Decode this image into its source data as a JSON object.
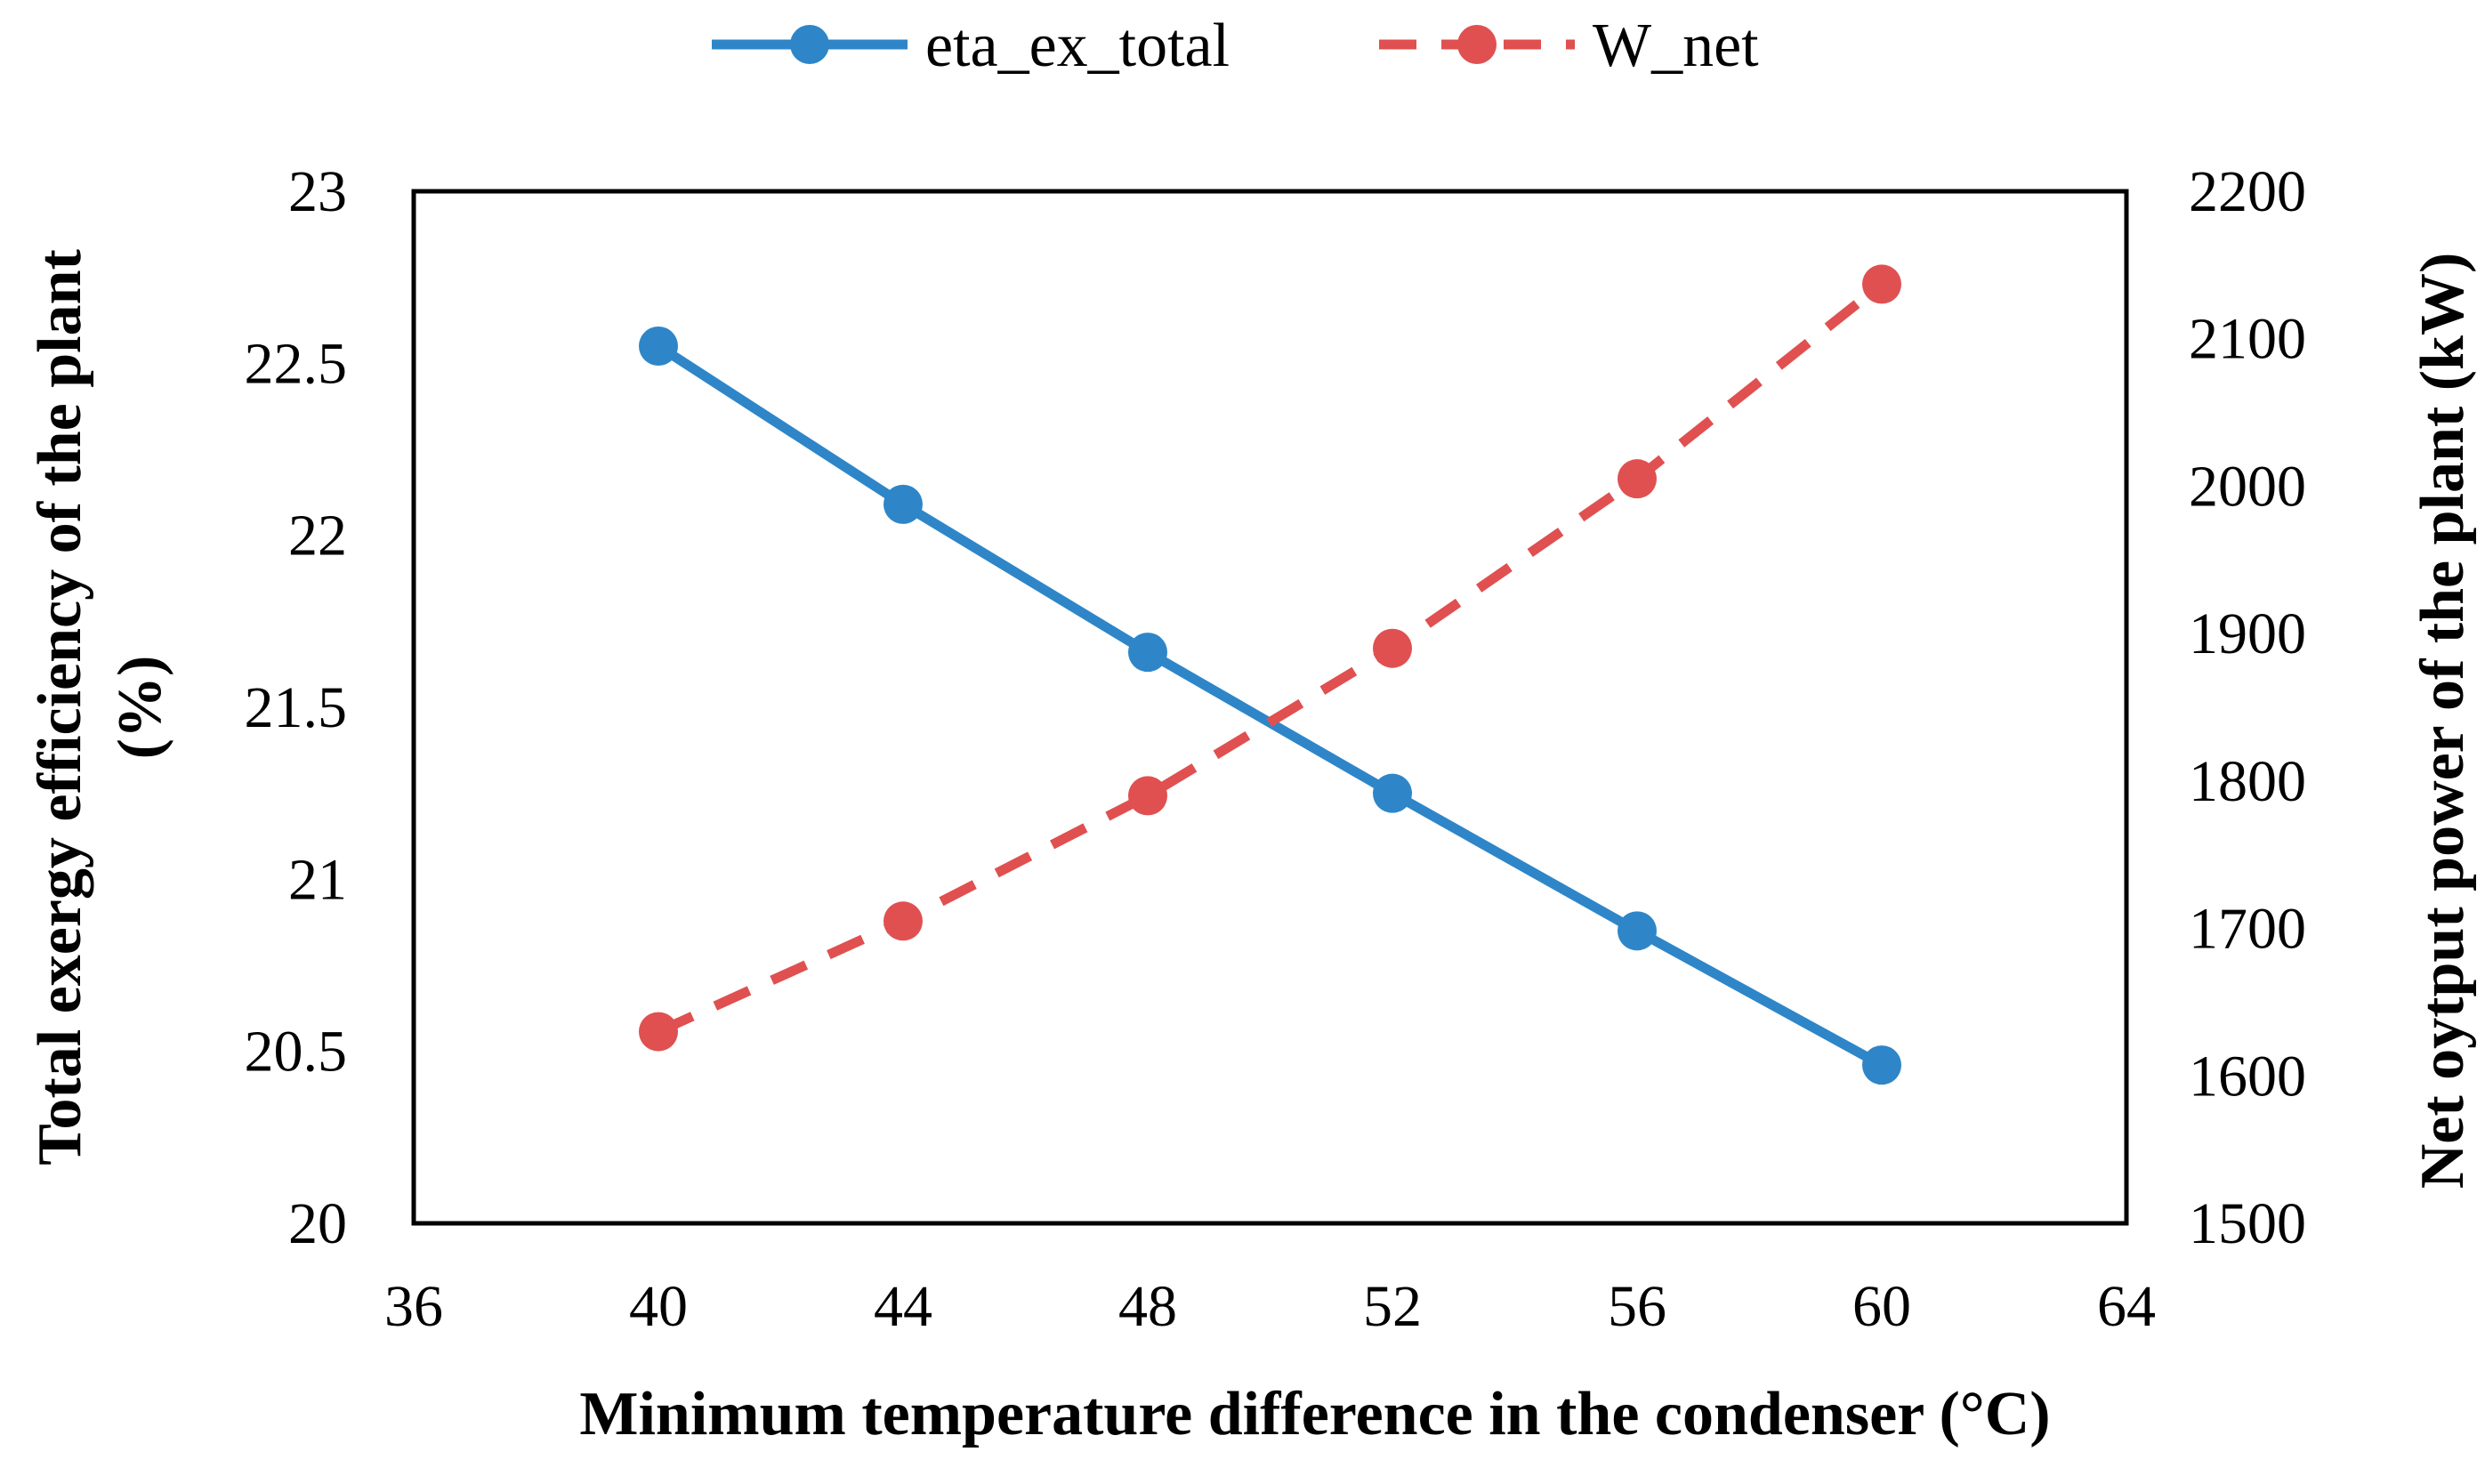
{
  "chart_data": {
    "type": "line",
    "title": "",
    "xlabel": "Minimum temperature difference in the condenser (°C)",
    "ylabel_left_line1": "Total exergy efficiency of the plant",
    "ylabel_left_line2": "(%)",
    "ylabel_right": "Net oytput power of the plant (kW)",
    "x": [
      40,
      44,
      48,
      52,
      56,
      60
    ],
    "xlim": [
      36,
      64
    ],
    "xticks": [
      "36",
      "40",
      "44",
      "48",
      "52",
      "56",
      "60",
      "64"
    ],
    "ylim_left": [
      20,
      23
    ],
    "yticks_left": [
      "20",
      "20.5",
      "21",
      "21.5",
      "22",
      "22.5",
      "23"
    ],
    "ylim_right": [
      1500,
      2200
    ],
    "yticks_right": [
      "1500",
      "1600",
      "1700",
      "1800",
      "1900",
      "2000",
      "2100",
      "2200"
    ],
    "grid": false,
    "legend_position": "top-center",
    "series": [
      {
        "name": "eta_ex_total",
        "axis": "left",
        "style": "solid",
        "color": "#2E86C8",
        "values": [
          22.55,
          22.09,
          21.66,
          21.25,
          20.85,
          20.46
        ]
      },
      {
        "name": "W_net",
        "axis": "right",
        "style": "dashed",
        "color": "#E05050",
        "values": [
          1630,
          1705,
          1790,
          1890,
          2005,
          2137
        ]
      }
    ]
  }
}
